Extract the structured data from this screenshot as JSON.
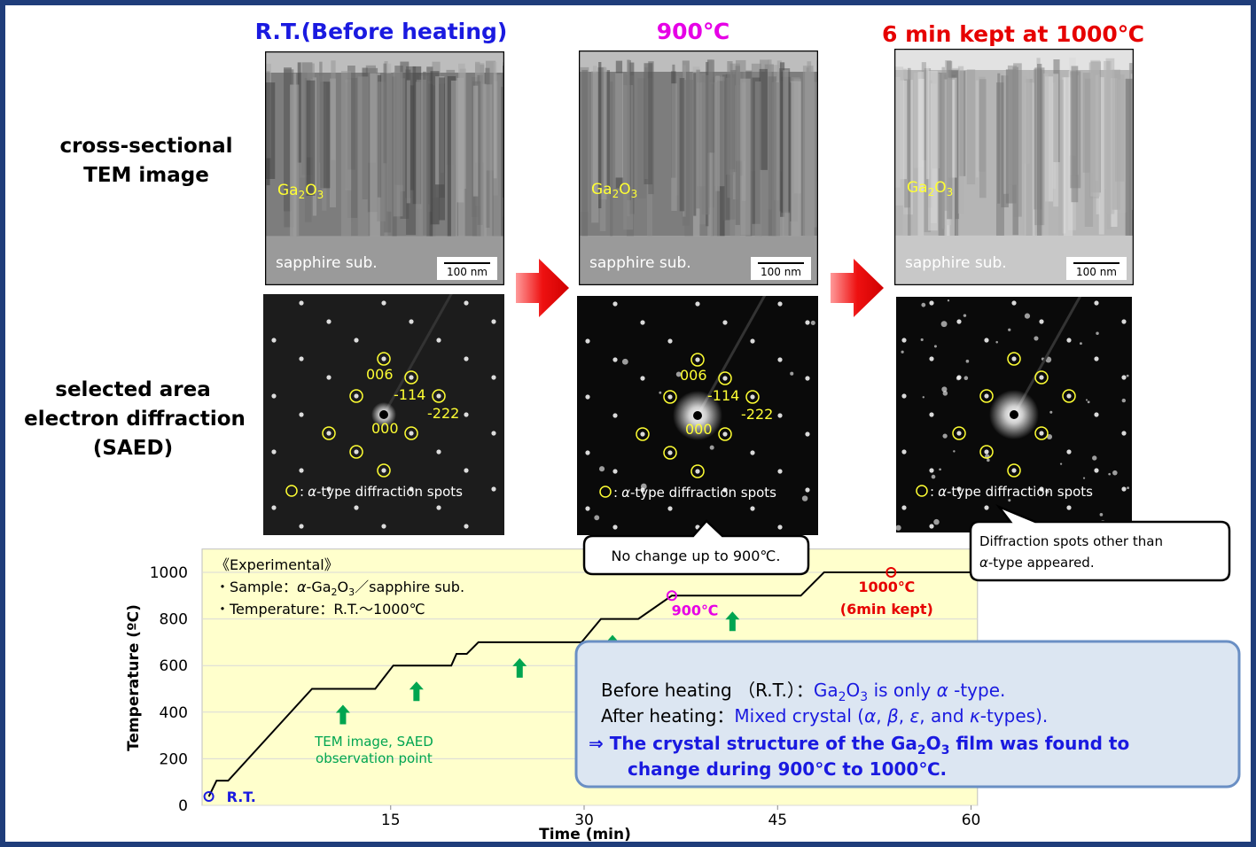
{
  "columns": [
    {
      "title": "R.T.(Before heating)",
      "color": "#1a1ae0"
    },
    {
      "title": "900℃",
      "color": "#e600e6"
    },
    {
      "title": "6 min kept at 1000℃",
      "color": "#e60000"
    }
  ],
  "row_labels": [
    [
      "cross-sectional",
      "TEM image"
    ],
    [
      "selected area",
      "electron diffraction",
      "(SAED)"
    ]
  ],
  "tem_labels": {
    "film": [
      "Ga",
      "2",
      "O",
      "3"
    ],
    "substrate": "sapphire sub.",
    "scale": "100 nm"
  },
  "saed_labels": {
    "indices": [
      "006",
      "-114",
      "-222",
      "000"
    ],
    "legend": [
      ":",
      "α",
      "-type diffraction spots"
    ]
  },
  "callouts": {
    "no_change": "No change up to 900℃.",
    "other_spots": [
      "Diffraction spots other than",
      "α",
      "-type appeared."
    ]
  },
  "experimental": {
    "heading": "《Experimental》",
    "sample": [
      "・Sample：",
      "α",
      "-Ga",
      "2",
      "O",
      "3",
      "／sapphire sub."
    ],
    "temperature": "・Temperature：R.T.～1000℃"
  },
  "summary": {
    "before": [
      "Before heating （R.T.）：",
      "Ga",
      "2",
      "O",
      "3",
      " is only ",
      "α",
      " -type."
    ],
    "after": [
      "After heating：",
      "Mixed crystal (",
      "α",
      ", ",
      "β",
      ", ",
      "ε",
      ", and ",
      "κ",
      "-types)."
    ],
    "conclusion": [
      "⇒ The crystal structure of the Ga",
      "2",
      "O",
      "3",
      " film was found to",
      "change during 900℃ to 1000℃."
    ]
  },
  "chart_data": {
    "type": "line",
    "xlabel": "Time (min)",
    "ylabel": "Temperature (ºC)",
    "color": "#000000",
    "x": [
      0.9,
      1.5,
      2.4,
      8.9,
      13.8,
      15.2,
      19.7,
      20.1,
      20.9,
      21.8,
      29.8,
      31.3,
      34.2,
      36.8,
      46.8,
      48.6,
      60.2
    ],
    "values": [
      38,
      106,
      106,
      500,
      500,
      600,
      600,
      650,
      650,
      700,
      700,
      800,
      800,
      900,
      900,
      1000,
      1000
    ],
    "xlim": [
      0,
      60.5
    ],
    "ylim": [
      0,
      1100
    ],
    "xticks": [
      15,
      30,
      45,
      60
    ],
    "yticks": [
      0,
      200,
      400,
      600,
      800,
      1000
    ],
    "grid": true,
    "markers": [
      {
        "x": 0.9,
        "y": 38,
        "color": "#1a1ae0",
        "label": "R.T."
      },
      {
        "x": 36.8,
        "y": 900,
        "color": "#e600e6",
        "label": "900℃"
      },
      {
        "x": 53.8,
        "y": 1000,
        "color": "#e60000",
        "label": [
          "1000℃",
          "(6min kept)"
        ]
      }
    ],
    "observation_points": {
      "x": [
        11.3,
        17.0,
        25.0,
        32.2,
        41.5
      ],
      "color": "#00a550",
      "label": [
        "TEM image, SAED",
        "observation point"
      ]
    }
  }
}
